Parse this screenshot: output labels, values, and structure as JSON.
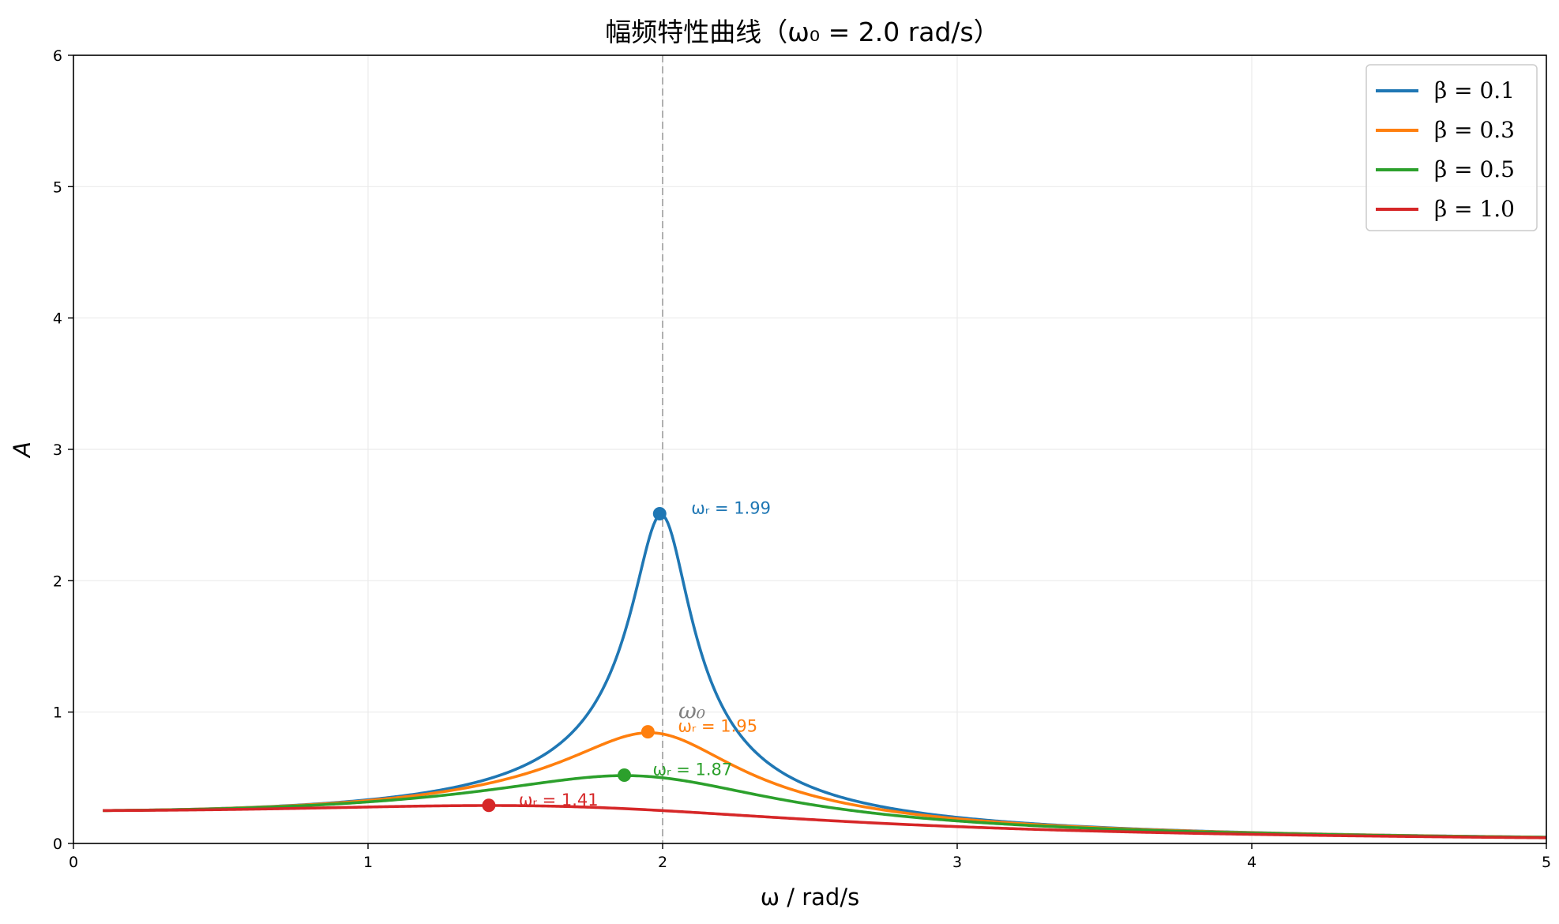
{
  "chart_data": {
    "type": "line",
    "title": "幅频特性曲线（ω₀ = 2.0 rad/s）",
    "xlabel": "ω / rad/s",
    "ylabel": "A",
    "xlim": [
      0,
      5
    ],
    "ylim": [
      0,
      6
    ],
    "x_ticks": [
      "0",
      "1",
      "2",
      "3",
      "4",
      "5"
    ],
    "y_ticks": [
      "0",
      "1",
      "2",
      "3",
      "4",
      "5",
      "6"
    ],
    "grid": true,
    "legend_position": "top-right",
    "omega0": 2.0,
    "reference_line": {
      "x": 2.0,
      "label": "ω₀",
      "color": "#b0b0b0"
    },
    "x_range": [
      0.1,
      5.0
    ],
    "series": [
      {
        "name": "β = 0.1",
        "beta": 0.1,
        "color": "#1f77b4",
        "peak": {
          "x": 1.99,
          "y": 2.51
        },
        "peak_label": "ωᵣ = 1.99"
      },
      {
        "name": "β = 0.3",
        "beta": 0.3,
        "color": "#ff7f0e",
        "peak": {
          "x": 1.95,
          "y": 0.85
        },
        "peak_label": "ωᵣ = 1.95"
      },
      {
        "name": "β = 0.5",
        "beta": 0.5,
        "color": "#2ca02c",
        "peak": {
          "x": 1.87,
          "y": 0.52
        },
        "peak_label": "ωᵣ = 1.87"
      },
      {
        "name": "β = 1.0",
        "beta": 1.0,
        "color": "#d62728",
        "peak": {
          "x": 1.41,
          "y": 0.29
        },
        "peak_label": "ωᵣ = 1.41"
      }
    ]
  }
}
